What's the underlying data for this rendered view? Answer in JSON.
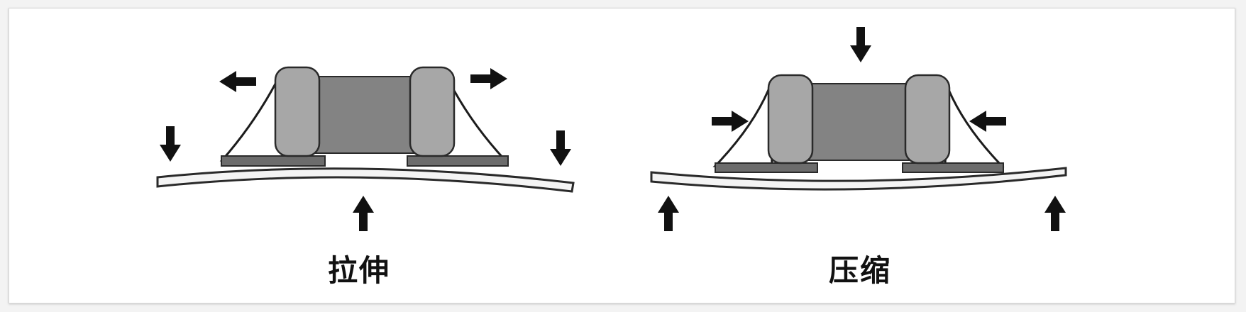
{
  "figure": {
    "panels": [
      {
        "label": "拉伸"
      },
      {
        "label": "压缩"
      }
    ],
    "colors": {
      "board_fill": "#f4f4f4",
      "board_stroke": "#2a2a2a",
      "terminal": "#a7a7a7",
      "body": "#838383",
      "pad": "#6c6c6c",
      "solder": "#ffffff",
      "arrow": "#111111"
    }
  }
}
